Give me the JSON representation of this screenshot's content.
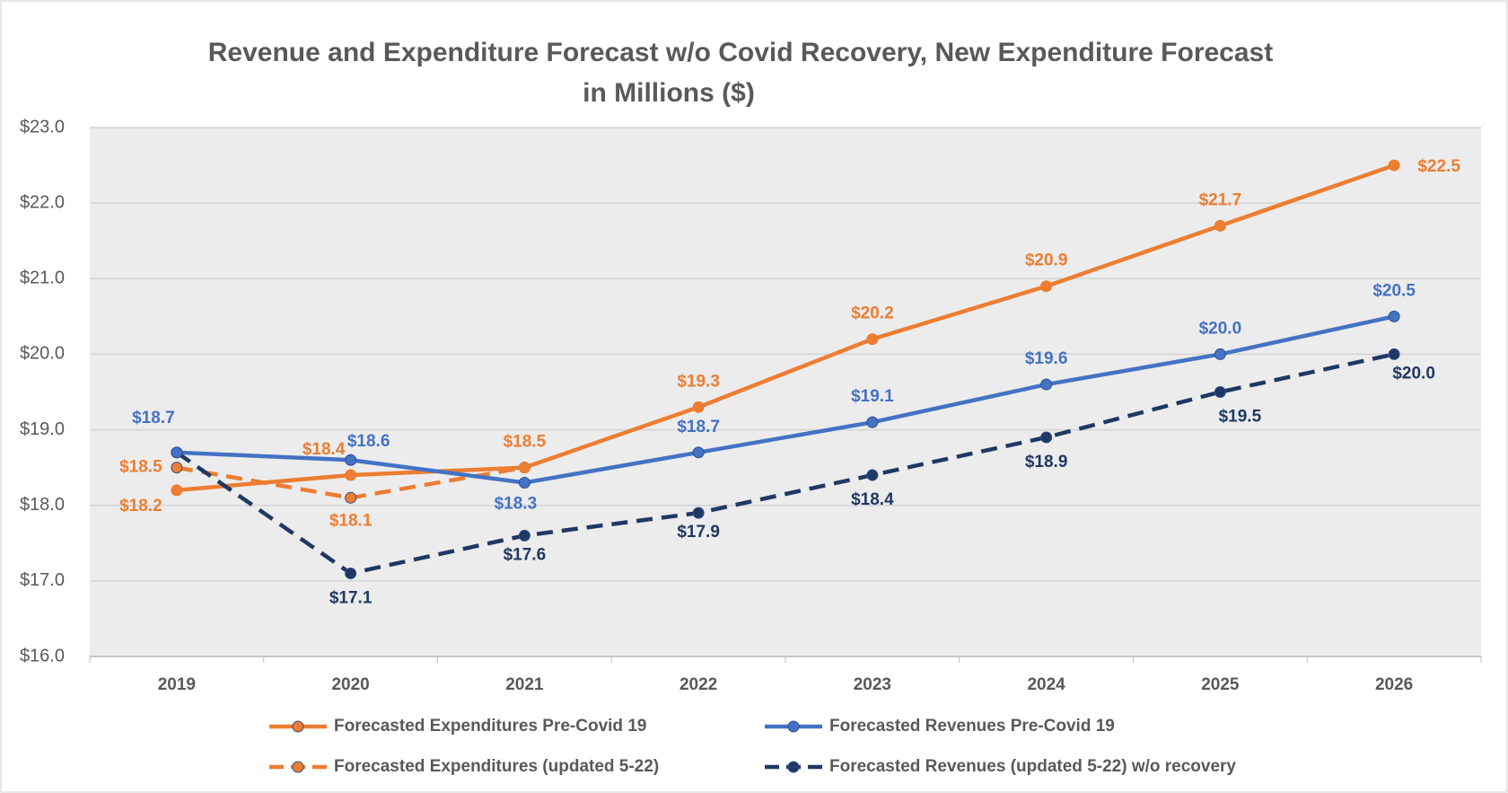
{
  "chart_data": {
    "type": "line",
    "title": "Revenue and Expenditure Forecast w/o Covid Recovery, New Expenditure Forecast",
    "subtitle": "in Millions ($)",
    "categories": [
      "2019",
      "2020",
      "2021",
      "2022",
      "2023",
      "2024",
      "2025",
      "2026"
    ],
    "ylim": [
      16,
      23
    ],
    "yticks": [
      {
        "value": 16,
        "label": "$16.0"
      },
      {
        "value": 17,
        "label": "$17.0"
      },
      {
        "value": 18,
        "label": "$18.0"
      },
      {
        "value": 19,
        "label": "$19.0"
      },
      {
        "value": 20,
        "label": "$20.0"
      },
      {
        "value": 21,
        "label": "$21.0"
      },
      {
        "value": 22,
        "label": "$22.0"
      },
      {
        "value": 23,
        "label": "$23.0"
      }
    ],
    "grid": true,
    "legend": "bottom",
    "series": [
      {
        "name": "Forecasted Expenditures Pre-Covid 19",
        "color": "#ed7d31",
        "dashed": false,
        "values": [
          18.2,
          18.4,
          18.5,
          19.3,
          20.2,
          20.9,
          21.7,
          22.5
        ],
        "value_labels": [
          "$18.2",
          "$18.4",
          "$18.5",
          "$19.3",
          "$20.2",
          "$20.9",
          "$21.7",
          "$22.5"
        ]
      },
      {
        "name": "Forecasted Revenues Pre-Covid 19",
        "color": "#4472c4",
        "dashed": false,
        "values": [
          18.7,
          18.6,
          18.3,
          18.7,
          19.1,
          19.6,
          20.0,
          20.5
        ],
        "value_labels": [
          "$18.7",
          "$18.6",
          "$18.3",
          "$18.7",
          "$19.1",
          "$19.6",
          "$20.0",
          "$20.5"
        ]
      },
      {
        "name": "Forecasted Expenditures (updated 5-22)",
        "color": "#ed7d31",
        "dashed": true,
        "values": [
          18.5,
          18.1,
          18.5,
          null,
          null,
          null,
          null,
          null
        ],
        "value_labels": [
          "$18.5",
          "$18.1",
          null,
          null,
          null,
          null,
          null,
          null
        ]
      },
      {
        "name": "Forecasted Revenues (updated 5-22) w/o recovery",
        "color": "#1f3864",
        "dashed": true,
        "values": [
          18.7,
          17.1,
          17.6,
          17.9,
          18.4,
          18.9,
          19.5,
          20.0
        ],
        "value_labels": [
          null,
          "$17.1",
          "$17.6",
          "$17.9",
          "$18.4",
          "$18.9",
          "$19.5",
          "$20.0"
        ]
      }
    ]
  }
}
